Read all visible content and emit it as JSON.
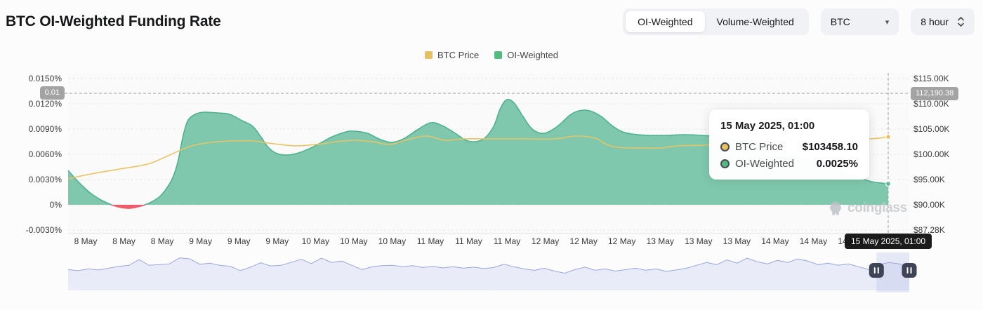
{
  "header": {
    "title": "BTC OI-Weighted Funding Rate",
    "toggle": {
      "options": [
        "OI-Weighted",
        "Volume-Weighted"
      ],
      "active": "OI-Weighted"
    },
    "symbol_select": {
      "value": "BTC"
    },
    "interval_select": {
      "value": "8 hour"
    }
  },
  "legend": {
    "items": [
      {
        "label": "BTC Price",
        "color": "#e6c05c"
      },
      {
        "label": "OI-Weighted",
        "color": "#55b982"
      }
    ]
  },
  "axes": {
    "left_labels": [
      "0.0150%",
      "0.0120%",
      "0.0090%",
      "0.0060%",
      "0.0030%",
      "0%",
      "-0.0030%"
    ],
    "right_labels": [
      "$115.00K",
      "$110.00K",
      "$105.00K",
      "$100.00K",
      "$95.00K",
      "$90.00K",
      "$87.28K"
    ],
    "x_labels": [
      "8 May",
      "8 May",
      "8 May",
      "9 May",
      "9 May",
      "9 May",
      "10 May",
      "10 May",
      "10 May",
      "11 May",
      "11 May",
      "11 May",
      "12 May",
      "12 May",
      "12 May",
      "13 May",
      "13 May",
      "13 May",
      "14 May",
      "14 May",
      "14 May"
    ]
  },
  "crosshair": {
    "left_badge": "0.01",
    "right_badge": "112,190.38",
    "x_badge": "15 May 2025, 01:00"
  },
  "tooltip": {
    "title": "15 May 2025, 01:00",
    "rows": [
      {
        "label": "BTC Price",
        "value": "$103458.10",
        "color": "#e6c05c"
      },
      {
        "label": "OI-Weighted",
        "value": "0.0025%",
        "color": "#55b982"
      }
    ]
  },
  "watermark": {
    "text": "coinglass"
  },
  "colors": {
    "price_line": "#e8c464",
    "funding_line": "#4db291",
    "funding_fill": "#7fc8ad",
    "negative_fill": "#ef5b68",
    "nav_line": "#9aa6db",
    "nav_fill": "#e9ecf8",
    "nav_window": "rgba(148,166,224,0.22)",
    "handle": "#3e4456",
    "grid": "#eaeaea",
    "crosshair": "#9aa0a6",
    "axis_line": "#e2e2e2"
  },
  "chart_data": {
    "type": "line",
    "title": "BTC OI-Weighted Funding Rate",
    "x_axis": {
      "type": "time",
      "tick_labels_count": 21,
      "cursor_label": "15 May 2025, 01:00"
    },
    "y_axis_left": {
      "name": "Funding Rate",
      "unit": "%",
      "tick_step_pct": 0.003,
      "ticks_pct": [
        0.015,
        0.012,
        0.009,
        0.006,
        0.003,
        0,
        -0.003
      ]
    },
    "y_axis_right": {
      "name": "BTC Price",
      "unit": "USD",
      "ticks_k": [
        115,
        110,
        105,
        100,
        95,
        90,
        87.28
      ]
    },
    "cursor": {
      "x_frac": 1.0,
      "btc_price": 103458.1,
      "oi_weighted_pct": 0.0025,
      "crosshair_price_k": 112.19038,
      "crosshair_rate_label": "0.01"
    },
    "series": [
      {
        "name": "BTC Price",
        "type": "line",
        "unit": "USD thousands",
        "points": [
          [
            0,
            95.14
          ],
          [
            0.028,
            96.11
          ],
          [
            0.063,
            97.08
          ],
          [
            0.097,
            98.06
          ],
          [
            0.122,
            99.72
          ],
          [
            0.148,
            101.53
          ],
          [
            0.174,
            102.36
          ],
          [
            0.199,
            102.64
          ],
          [
            0.225,
            102.64
          ],
          [
            0.251,
            102.08
          ],
          [
            0.277,
            101.67
          ],
          [
            0.302,
            101.94
          ],
          [
            0.328,
            102.5
          ],
          [
            0.349,
            102.78
          ],
          [
            0.371,
            102.5
          ],
          [
            0.392,
            101.94
          ],
          [
            0.414,
            102.92
          ],
          [
            0.437,
            103.61
          ],
          [
            0.459,
            102.78
          ],
          [
            0.482,
            103.06
          ],
          [
            0.516,
            103.06
          ],
          [
            0.555,
            103.06
          ],
          [
            0.593,
            103.06
          ],
          [
            0.619,
            103.61
          ],
          [
            0.643,
            103.19
          ],
          [
            0.655,
            102.08
          ],
          [
            0.67,
            101.39
          ],
          [
            0.696,
            101.25
          ],
          [
            0.722,
            101.25
          ],
          [
            0.743,
            101.67
          ],
          [
            0.773,
            101.81
          ],
          [
            0.824,
            102.22
          ],
          [
            0.884,
            102.64
          ],
          [
            0.936,
            102.78
          ],
          [
            0.978,
            103.06
          ],
          [
            1,
            103.46
          ]
        ]
      },
      {
        "name": "OI-Weighted",
        "type": "area",
        "unit": "%",
        "points": [
          [
            0,
            0.00408
          ],
          [
            0.013,
            0.00267
          ],
          [
            0.028,
            0.00133
          ],
          [
            0.045,
            0.00033
          ],
          [
            0.061,
            -0.00025
          ],
          [
            0.075,
            -0.00042
          ],
          [
            0.088,
            -0.00017
          ],
          [
            0.098,
            0.00017
          ],
          [
            0.11,
            0.00083
          ],
          [
            0.118,
            0.00167
          ],
          [
            0.127,
            0.00308
          ],
          [
            0.134,
            0.00517
          ],
          [
            0.14,
            0.00808
          ],
          [
            0.146,
            0.01
          ],
          [
            0.155,
            0.01075
          ],
          [
            0.165,
            0.011
          ],
          [
            0.182,
            0.01092
          ],
          [
            0.197,
            0.01075
          ],
          [
            0.212,
            0.01
          ],
          [
            0.225,
            0.00933
          ],
          [
            0.235,
            0.00808
          ],
          [
            0.244,
            0.00683
          ],
          [
            0.255,
            0.00608
          ],
          [
            0.268,
            0.00592
          ],
          [
            0.281,
            0.00617
          ],
          [
            0.294,
            0.00667
          ],
          [
            0.306,
            0.00725
          ],
          [
            0.322,
            0.00808
          ],
          [
            0.339,
            0.00867
          ],
          [
            0.349,
            0.00875
          ],
          [
            0.365,
            0.0085
          ],
          [
            0.379,
            0.00783
          ],
          [
            0.394,
            0.00742
          ],
          [
            0.409,
            0.00783
          ],
          [
            0.426,
            0.00892
          ],
          [
            0.442,
            0.00975
          ],
          [
            0.456,
            0.00942
          ],
          [
            0.472,
            0.0085
          ],
          [
            0.485,
            0.00767
          ],
          [
            0.497,
            0.0075
          ],
          [
            0.508,
            0.00792
          ],
          [
            0.519,
            0.00933
          ],
          [
            0.527,
            0.01142
          ],
          [
            0.535,
            0.0125
          ],
          [
            0.544,
            0.01208
          ],
          [
            0.554,
            0.01058
          ],
          [
            0.565,
            0.00908
          ],
          [
            0.576,
            0.0085
          ],
          [
            0.586,
            0.00867
          ],
          [
            0.599,
            0.0095
          ],
          [
            0.612,
            0.01067
          ],
          [
            0.623,
            0.01117
          ],
          [
            0.636,
            0.01117
          ],
          [
            0.65,
            0.0105
          ],
          [
            0.662,
            0.0095
          ],
          [
            0.674,
            0.00875
          ],
          [
            0.687,
            0.00842
          ],
          [
            0.709,
            0.00825
          ],
          [
            0.73,
            0.00825
          ],
          [
            0.752,
            0.00833
          ],
          [
            0.773,
            0.00825
          ],
          [
            0.799,
            0.008
          ],
          [
            0.833,
            0.00725
          ],
          [
            0.867,
            0.00633
          ],
          [
            0.901,
            0.00533
          ],
          [
            0.936,
            0.00425
          ],
          [
            0.961,
            0.00333
          ],
          [
            0.98,
            0.00275
          ],
          [
            0.992,
            0.00258
          ],
          [
            1,
            0.0025
          ]
        ]
      }
    ],
    "navigator": {
      "selected_range_frac": [
        0.961,
        1.0
      ],
      "wave": [
        0.42,
        0.45,
        0.4,
        0.43,
        0.38,
        0.33,
        0.3,
        0.14,
        0.3,
        0.28,
        0.26,
        0.09,
        0.12,
        0.27,
        0.24,
        0.3,
        0.33,
        0.45,
        0.35,
        0.23,
        0.32,
        0.3,
        0.22,
        0.13,
        0.25,
        0.1,
        0.22,
        0.18,
        0.3,
        0.42,
        0.34,
        0.31,
        0.3,
        0.34,
        0.31,
        0.36,
        0.33,
        0.37,
        0.34,
        0.38,
        0.35,
        0.39,
        0.36,
        0.27,
        0.34,
        0.4,
        0.44,
        0.38,
        0.46,
        0.52,
        0.42,
        0.35,
        0.44,
        0.4,
        0.46,
        0.42,
        0.38,
        0.44,
        0.4,
        0.47,
        0.43,
        0.38,
        0.3,
        0.22,
        0.28,
        0.15,
        0.24,
        0.1,
        0.2,
        0.26,
        0.16,
        0.22,
        0.12,
        0.18,
        0.28,
        0.24,
        0.3,
        0.26,
        0.34,
        0.42,
        0.28,
        0.22,
        0.26,
        0.33
      ]
    }
  }
}
